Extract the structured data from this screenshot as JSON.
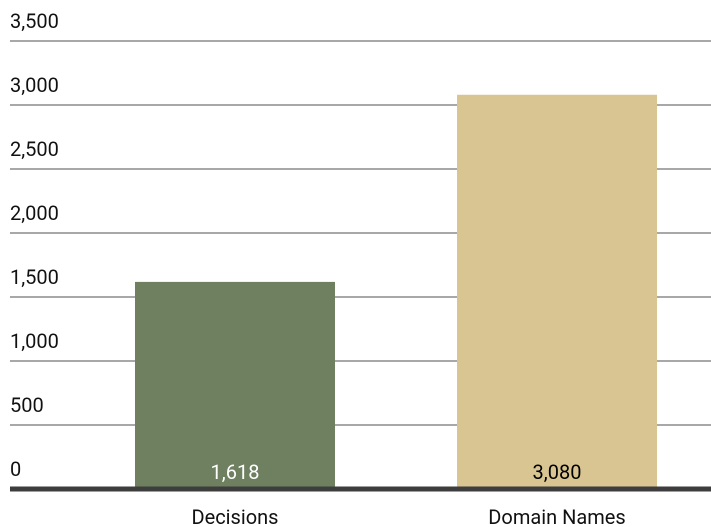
{
  "chart_data": {
    "type": "bar",
    "categories": [
      "Decisions",
      "Domain Names"
    ],
    "values": [
      1618,
      3080
    ],
    "value_labels": [
      "1,618",
      "3,080"
    ],
    "colors": [
      "#6e8060",
      "#d9c592"
    ],
    "ylim": [
      0,
      3500
    ],
    "yticks": [
      0,
      500,
      {
        "value": 1000,
        "label": "1,000"
      },
      {
        "value": 1500,
        "label": "1,500"
      },
      {
        "value": 2000,
        "label": "2,000"
      },
      {
        "value": 2500,
        "label": "2,500"
      },
      {
        "value": 3000,
        "label": "3,000"
      },
      {
        "value": 3500,
        "label": "3,500"
      }
    ],
    "grid": true
  }
}
